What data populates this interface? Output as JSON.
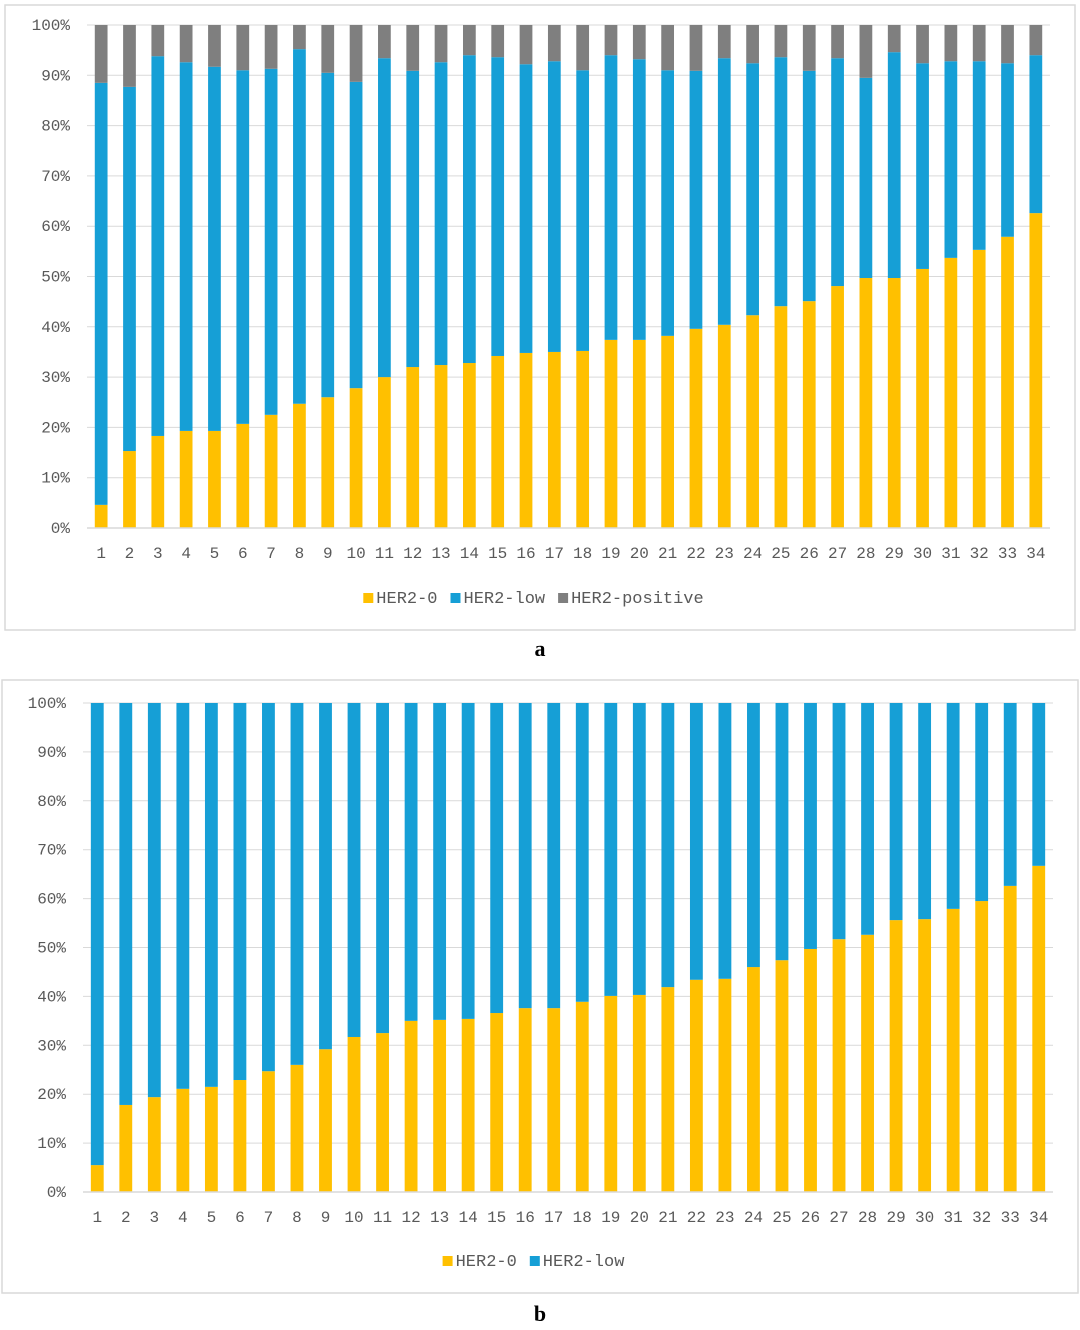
{
  "panel_labels": [
    "a",
    "b"
  ],
  "chart_data": [
    {
      "type": "bar",
      "stacked": true,
      "percent_stacked": true,
      "title": "",
      "xlabel": "",
      "ylabel": "",
      "ylim": [
        0,
        100
      ],
      "yticks": [
        "0%",
        "10%",
        "20%",
        "30%",
        "40%",
        "50%",
        "60%",
        "70%",
        "80%",
        "90%",
        "100%"
      ],
      "grid": true,
      "legend": "bottom",
      "categories": [
        "1",
        "2",
        "3",
        "4",
        "5",
        "6",
        "7",
        "8",
        "9",
        "10",
        "11",
        "12",
        "13",
        "14",
        "15",
        "16",
        "17",
        "18",
        "19",
        "20",
        "21",
        "22",
        "23",
        "24",
        "25",
        "26",
        "27",
        "28",
        "29",
        "30",
        "31",
        "32",
        "33",
        "34"
      ],
      "series": [
        {
          "name": "HER2-0",
          "color": "#FFC000",
          "values": [
            4.6,
            15.3,
            18.3,
            19.3,
            19.3,
            20.7,
            22.5,
            24.7,
            26.0,
            27.8,
            30.0,
            32.0,
            32.4,
            32.8,
            34.2,
            34.8,
            35.0,
            35.2,
            37.4,
            37.4,
            38.2,
            39.6,
            40.4,
            42.3,
            44.1,
            45.1,
            48.1,
            49.7,
            49.7,
            51.5,
            53.7,
            55.3,
            57.9,
            62.6
          ]
        },
        {
          "name": "HER2-low",
          "color": "#169FD6",
          "values": [
            83.9,
            72.4,
            75.5,
            73.3,
            72.4,
            70.3,
            68.8,
            70.5,
            64.5,
            60.9,
            63.4,
            58.9,
            60.2,
            61.2,
            59.4,
            57.4,
            57.8,
            55.8,
            56.6,
            55.8,
            52.8,
            51.3,
            53.0,
            50.1,
            49.5,
            45.8,
            45.3,
            39.8,
            44.9,
            40.9,
            39.1,
            37.5,
            34.5,
            31.4
          ]
        },
        {
          "name": "HER2-positive",
          "color": "#7F7F7F",
          "values": [
            11.5,
            12.3,
            6.2,
            7.4,
            8.3,
            9.0,
            8.7,
            4.8,
            9.5,
            11.3,
            6.6,
            9.1,
            7.4,
            6.0,
            6.4,
            7.8,
            7.2,
            9.0,
            6.0,
            6.8,
            9.0,
            9.1,
            6.6,
            7.6,
            6.4,
            9.1,
            6.6,
            10.5,
            5.4,
            7.6,
            7.2,
            7.2,
            7.6,
            6.0
          ]
        }
      ]
    },
    {
      "type": "bar",
      "stacked": true,
      "percent_stacked": true,
      "title": "",
      "xlabel": "",
      "ylabel": "",
      "ylim": [
        0,
        100
      ],
      "yticks": [
        "0%",
        "10%",
        "20%",
        "30%",
        "40%",
        "50%",
        "60%",
        "70%",
        "80%",
        "90%",
        "100%"
      ],
      "grid": true,
      "legend": "bottom",
      "categories": [
        "1",
        "2",
        "3",
        "4",
        "5",
        "6",
        "7",
        "8",
        "9",
        "10",
        "11",
        "12",
        "13",
        "14",
        "15",
        "16",
        "17",
        "18",
        "19",
        "20",
        "21",
        "22",
        "23",
        "24",
        "25",
        "26",
        "27",
        "28",
        "29",
        "30",
        "31",
        "32",
        "33",
        "34"
      ],
      "series": [
        {
          "name": "HER2-0",
          "color": "#FFC000",
          "values": [
            5.5,
            17.8,
            19.4,
            21.1,
            21.5,
            22.9,
            24.7,
            26.0,
            29.2,
            31.7,
            32.5,
            35.0,
            35.2,
            35.4,
            36.6,
            37.6,
            37.6,
            38.9,
            40.1,
            40.3,
            41.9,
            43.4,
            43.6,
            46.0,
            47.4,
            49.7,
            51.7,
            52.6,
            55.6,
            55.8,
            57.9,
            59.5,
            62.6,
            66.7
          ]
        },
        {
          "name": "HER2-low",
          "color": "#169FD6",
          "values": [
            94.5,
            82.2,
            80.6,
            78.9,
            78.5,
            77.1,
            75.3,
            74.0,
            70.8,
            68.3,
            67.5,
            65.0,
            64.8,
            64.6,
            63.4,
            62.4,
            62.4,
            61.1,
            59.9,
            59.7,
            58.1,
            56.6,
            56.4,
            54.0,
            52.6,
            50.3,
            48.3,
            47.4,
            44.4,
            44.2,
            42.1,
            40.5,
            37.4,
            33.3
          ]
        }
      ]
    }
  ]
}
